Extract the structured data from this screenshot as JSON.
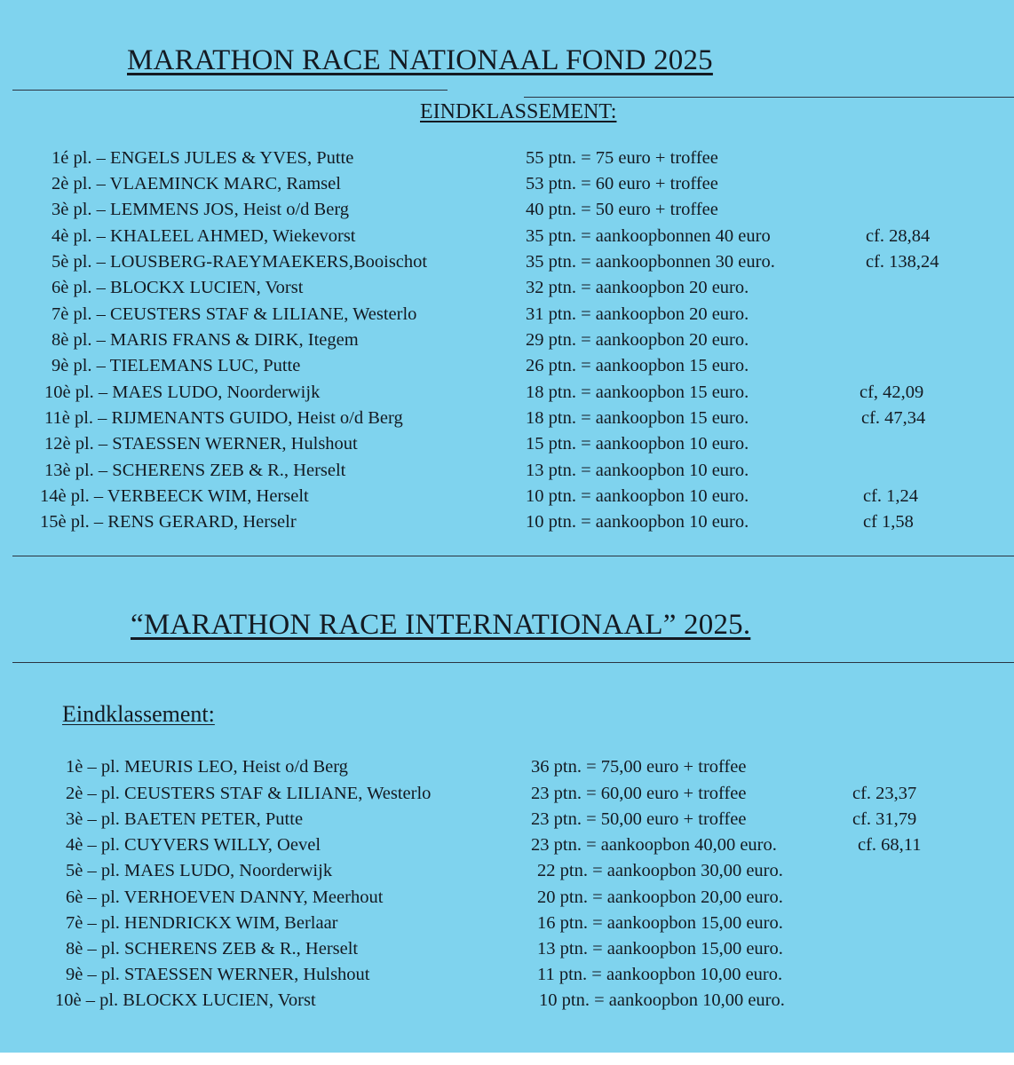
{
  "section1": {
    "title": "MARATHON RACE NATIONAAL FOND 2025",
    "subtitle": "EINDKLASSEMENT:",
    "rows": [
      {
        "place": "1é pl. – ENGELS JULES & YVES, Putte",
        "points": "55 ptn.  =  75 euro + troffee",
        "cf": ""
      },
      {
        "place": "2è pl. – VLAEMINCK MARC, Ramsel",
        "points": "53 ptn.  =  60 euro + troffee",
        "cf": ""
      },
      {
        "place": "3è pl. – LEMMENS JOS,  Heist o/d Berg",
        "points": "40 ptn.  =  50 euro + troffee",
        "cf": ""
      },
      {
        "place": "4è pl. – KHALEEL AHMED, Wiekevorst",
        "points": "35 ptn.  =  aankoopbonnen 40 euro",
        "cf": "cf.  28,84"
      },
      {
        "place": "5è pl. – LOUSBERG-RAEYMAEKERS,Booischot",
        "points": "35 ptn.   = aankoopbonnen 30 euro.",
        "cf": "cf.  138,24"
      },
      {
        "place": "6è pl. – BLOCKX LUCIEN, Vorst",
        "points": "32 ptn.  = aankoopbon 20 euro.",
        "cf": ""
      },
      {
        "place": "7è pl. – CEUSTERS STAF & LILIANE, Westerlo",
        "points": "31 ptn.  = aankoopbon 20 euro.",
        "cf": ""
      },
      {
        "place": "8è pl. – MARIS FRANS & DIRK, Itegem",
        "points": "29 ptn.  = aankoopbon 20 euro.",
        "cf": ""
      },
      {
        "place": "9è pl. – TIELEMANS LUC, Putte",
        "points": "26 ptn.  = aankoopbon 15 euro.",
        "cf": ""
      },
      {
        "place": "10è pl. – MAES LUDO, Noorderwijk",
        "points": "18 ptn.  = aankoopbon 15 euro.",
        "cf": "cf, 42,09"
      },
      {
        "place": "11è pl. – RIJMENANTS GUIDO, Heist o/d Berg",
        "points": "18 ptn. = aankoopbon 15 euro.",
        "cf": "cf. 47,34"
      },
      {
        "place": "12è pl. – STAESSEN WERNER, Hulshout",
        "points": "15 ptn. = aankoopbon 10 euro.",
        "cf": ""
      },
      {
        "place": "13è pl. – SCHERENS ZEB & R., Herselt",
        "points": "13 ptn. = aankoopbon 10 euro.",
        "cf": ""
      },
      {
        "place": "14è pl. – VERBEECK WIM, Herselt",
        "points": "10 ptn. = aankoopbon 10 euro.",
        "cf": "cf. 1,24"
      },
      {
        "place": "15è pl. – RENS GERARD, Herselr",
        "points": "10 ptn. = aankoopbon 10 euro.",
        "cf": "cf 1,58"
      }
    ]
  },
  "section2": {
    "title": "“MARATHON RACE INTERNATIONAAL” 2025.",
    "subtitle": "Eindklassement:",
    "rows": [
      {
        "place": "1è – pl. MEURIS LEO, Heist o/d Berg",
        "points": "36 ptn.  = 75,00 euro + troffee",
        "cf": ""
      },
      {
        "place": "2è – pl. CEUSTERS STAF & LILIANE, Westerlo",
        "points": "23 ptn.  = 60,00 euro + troffee",
        "cf": "cf. 23,37"
      },
      {
        "place": "3è – pl. BAETEN PETER, Putte",
        "points": "23 ptn.  = 50,00 euro + troffee",
        "cf": "cf. 31,79"
      },
      {
        "place": "4è – pl. CUYVERS WILLY, Oevel",
        "points": "23 ptn.  = aankoopbon 40,00 euro.",
        "cf": "cf. 68,11"
      },
      {
        "place": "5è – pl. MAES LUDO, Noorderwijk",
        "points": "22 ptn.  = aankoopbon 30,00 euro.",
        "cf": ""
      },
      {
        "place": "6è – pl. VERHOEVEN DANNY, Meerhout",
        "points": "20 ptn.  = aankoopbon 20,00 euro.",
        "cf": ""
      },
      {
        "place": "7è – pl. HENDRICKX WIM, Berlaar",
        "points": "16 ptn.  = aankoopbon 15,00 euro.",
        "cf": ""
      },
      {
        "place": "8è – pl. SCHERENS ZEB & R., Herselt",
        "points": "13 ptn.   = aankoopbon 15,00 euro.",
        "cf": ""
      },
      {
        "place": "9è – pl. STAESSEN WERNER, Hulshout",
        "points": "11 ptn.  = aankoopbon 10,00 euro.",
        "cf": ""
      },
      {
        "place": "10è – pl. BLOCKX LUCIEN, Vorst",
        "points": "10 ptn. = aankoopbon 10,00 euro.",
        "cf": ""
      }
    ]
  }
}
